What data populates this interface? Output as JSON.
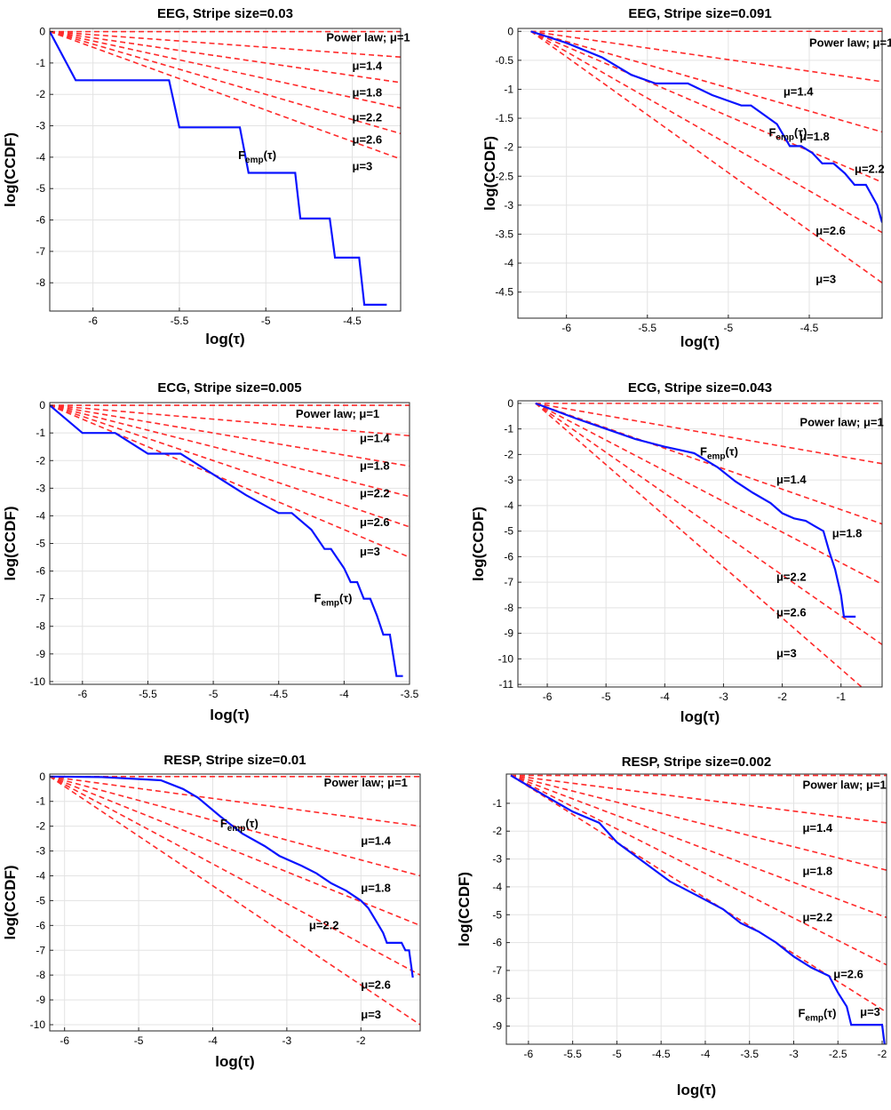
{
  "colors": {
    "empirical": "#0a14ff",
    "reference": "#ff2a2a",
    "grid": "#e3e3e3"
  },
  "chart_data": [
    {
      "type": "line",
      "title": "EEG, Stripe size=0.03",
      "xlabel": "log(τ)",
      "ylabel": "log(CCDF)",
      "xlim": [
        -6.25,
        -4.22
      ],
      "ylim": [
        -8.9,
        0.1
      ],
      "xticks": [
        -6,
        -5.5,
        -5,
        -4.5
      ],
      "xtick_labels": [
        "-6",
        "-5.5",
        "-5",
        "-4.5"
      ],
      "yticks": [
        0,
        -1,
        -2,
        -3,
        -4,
        -5,
        -6,
        -7,
        -8
      ],
      "ytick_labels": [
        "0",
        "-1",
        "-2",
        "-3",
        "-4",
        "-5",
        "-6",
        "-7",
        "-8"
      ],
      "reference_x0": -6.25,
      "reference_lines": [
        {
          "mu": 1,
          "label_prefix": "Power law; ",
          "label": "μ=1",
          "label_pos": [
            -4.65,
            -0.2
          ]
        },
        {
          "mu": 1.4,
          "label": "μ=1.4",
          "label_pos": [
            -4.5,
            -1.1
          ]
        },
        {
          "mu": 1.8,
          "label": "μ=1.8",
          "label_pos": [
            -4.5,
            -1.95
          ]
        },
        {
          "mu": 2.2,
          "label": "μ=2.2",
          "label_pos": [
            -4.5,
            -2.75
          ]
        },
        {
          "mu": 2.6,
          "label": "μ=2.6",
          "label_pos": [
            -4.5,
            -3.45
          ]
        },
        {
          "mu": 3,
          "label": "μ=3",
          "label_pos": [
            -4.5,
            -4.3
          ]
        }
      ],
      "empirical": {
        "label": "F",
        "label_sub": "emp",
        "label_suffix": "(τ)",
        "label_pos": [
          -5.16,
          -3.95
        ],
        "x": [
          -6.25,
          -6.1,
          -5.56,
          -5.5,
          -5.15,
          -5.1,
          -4.83,
          -4.8,
          -4.63,
          -4.6,
          -4.46,
          -4.43,
          -4.3
        ],
        "y": [
          0,
          -1.55,
          -1.55,
          -3.05,
          -3.05,
          -4.5,
          -4.5,
          -5.95,
          -5.95,
          -7.2,
          -7.2,
          -8.7,
          -8.7
        ]
      }
    },
    {
      "type": "line",
      "title": "EEG, Stripe size=0.091",
      "xlabel": "log(τ)",
      "ylabel": "log(CCDF)",
      "xlim": [
        -6.3,
        -4.05
      ],
      "ylim": [
        -4.95,
        0.05
      ],
      "xticks": [
        -6,
        -5.5,
        -5,
        -4.5
      ],
      "xtick_labels": [
        "-6",
        "-5.5",
        "-5",
        "-4.5"
      ],
      "yticks": [
        0,
        -0.5,
        -1,
        -1.5,
        -2,
        -2.5,
        -3,
        -3.5,
        -4,
        -4.5
      ],
      "ytick_labels": [
        "0",
        "-0.5",
        "-1",
        "-1.5",
        "-2",
        "-2.5",
        "-3",
        "-3.5",
        "-4",
        "-4.5"
      ],
      "reference_x0": -6.22,
      "reference_lines": [
        {
          "mu": 1,
          "label_prefix": "Power law; ",
          "label": "μ=1",
          "label_pos": [
            -4.5,
            -0.2
          ]
        },
        {
          "mu": 1.4,
          "label": "μ=1.4",
          "label_pos": [
            -4.66,
            -1.05
          ]
        },
        {
          "mu": 1.8,
          "label": "μ=1.8",
          "label_pos": [
            -4.56,
            -1.82
          ]
        },
        {
          "mu": 2.2,
          "label": "μ=2.2",
          "label_pos": [
            -4.22,
            -2.38
          ]
        },
        {
          "mu": 2.6,
          "label": "μ=2.6",
          "label_pos": [
            -4.46,
            -3.45
          ]
        },
        {
          "mu": 3,
          "label": "μ=3",
          "label_pos": [
            -4.46,
            -4.28
          ]
        }
      ],
      "empirical": {
        "label": "F",
        "label_sub": "emp",
        "label_suffix": "(τ)",
        "label_pos": [
          -4.75,
          -1.75
        ],
        "x": [
          -6.22,
          -6.0,
          -5.78,
          -5.6,
          -5.45,
          -5.25,
          -5.1,
          -4.92,
          -4.86,
          -4.7,
          -4.62,
          -4.55,
          -4.48,
          -4.42,
          -4.35,
          -4.28,
          -4.22,
          -4.15,
          -4.08,
          -4.05
        ],
        "y": [
          0,
          -0.2,
          -0.45,
          -0.75,
          -0.9,
          -0.9,
          -1.1,
          -1.28,
          -1.28,
          -1.6,
          -1.98,
          -1.98,
          -2.1,
          -2.28,
          -2.28,
          -2.45,
          -2.65,
          -2.65,
          -3.0,
          -3.3
        ]
      }
    },
    {
      "type": "line",
      "title": "ECG, Stripe size=0.005",
      "xlabel": "log(τ)",
      "ylabel": "log(CCDF)",
      "xlim": [
        -6.25,
        -3.5
      ],
      "ylim": [
        -10.1,
        0.1
      ],
      "xticks": [
        -6,
        -5.5,
        -5,
        -4.5,
        -4,
        -3.5
      ],
      "xtick_labels": [
        "-6",
        "-5.5",
        "-5",
        "-4.5",
        "-4",
        "-3.5"
      ],
      "yticks": [
        0,
        -1,
        -2,
        -3,
        -4,
        -5,
        -6,
        -7,
        -8,
        -9,
        -10
      ],
      "ytick_labels": [
        "0",
        "-1",
        "-2",
        "-3",
        "-4",
        "-5",
        "-6",
        "-7",
        "-8",
        "-9",
        "-10"
      ],
      "reference_x0": -6.25,
      "reference_lines": [
        {
          "mu": 1,
          "label_prefix": "Power law; ",
          "label": "μ=1",
          "label_pos": [
            -4.37,
            -0.32
          ]
        },
        {
          "mu": 1.4,
          "label": "μ=1.4",
          "label_pos": [
            -3.88,
            -1.2
          ]
        },
        {
          "mu": 1.8,
          "label": "μ=1.8",
          "label_pos": [
            -3.88,
            -2.2
          ]
        },
        {
          "mu": 2.2,
          "label": "μ=2.2",
          "label_pos": [
            -3.88,
            -3.2
          ]
        },
        {
          "mu": 2.6,
          "label": "μ=2.6",
          "label_pos": [
            -3.88,
            -4.25
          ]
        },
        {
          "mu": 3,
          "label": "μ=3",
          "label_pos": [
            -3.88,
            -5.3
          ]
        }
      ],
      "empirical": {
        "label": "F",
        "label_sub": "emp",
        "label_suffix": "(τ)",
        "label_pos": [
          -4.23,
          -7.0
        ],
        "x": [
          -6.25,
          -6.0,
          -5.75,
          -5.5,
          -5.25,
          -5.0,
          -4.75,
          -4.5,
          -4.4,
          -4.25,
          -4.15,
          -4.1,
          -4.0,
          -3.95,
          -3.9,
          -3.85,
          -3.8,
          -3.75,
          -3.7,
          -3.65,
          -3.6,
          -3.55
        ],
        "y": [
          0,
          -1.0,
          -1.0,
          -1.75,
          -1.75,
          -2.5,
          -3.25,
          -3.9,
          -3.9,
          -4.5,
          -5.2,
          -5.2,
          -5.9,
          -6.4,
          -6.4,
          -7.0,
          -7.0,
          -7.6,
          -8.3,
          -8.3,
          -9.8,
          -9.8
        ]
      }
    },
    {
      "type": "line",
      "title": "ECG, Stripe size=0.043",
      "xlabel": "log(τ)",
      "ylabel": "log(CCDF)",
      "xlim": [
        -6.5,
        -0.3
      ],
      "ylim": [
        -11.1,
        0.1
      ],
      "xticks": [
        -6,
        -5,
        -4,
        -3,
        -2,
        -1
      ],
      "xtick_labels": [
        "-6",
        "-5",
        "-4",
        "-3",
        "-2",
        "-1"
      ],
      "yticks": [
        0,
        -1,
        -2,
        -3,
        -4,
        -5,
        -6,
        -7,
        -8,
        -9,
        -10,
        -11
      ],
      "ytick_labels": [
        "0",
        "-1",
        "-2",
        "-3",
        "-4",
        "-5",
        "-6",
        "-7",
        "-8",
        "-9",
        "-10",
        "-11"
      ],
      "reference_x0": -6.2,
      "reference_lines": [
        {
          "mu": 1,
          "label_prefix": "Power law; ",
          "label": "μ=1",
          "label_pos": [
            -1.7,
            -0.75
          ]
        },
        {
          "mu": 1.4,
          "label": "μ=1.4",
          "label_pos": [
            -2.1,
            -3.0
          ]
        },
        {
          "mu": 1.8,
          "label": "μ=1.8",
          "label_pos": [
            -1.15,
            -5.1
          ]
        },
        {
          "mu": 2.2,
          "label": "μ=2.2",
          "label_pos": [
            -2.1,
            -6.8
          ]
        },
        {
          "mu": 2.6,
          "label": "μ=2.6",
          "label_pos": [
            -2.1,
            -8.2
          ]
        },
        {
          "mu": 3,
          "label": "μ=3",
          "label_pos": [
            -2.1,
            -9.8
          ]
        }
      ],
      "empirical": {
        "label": "F",
        "label_sub": "emp",
        "label_suffix": "(τ)",
        "label_pos": [
          -3.4,
          -1.9
        ],
        "x": [
          -6.2,
          -5.5,
          -5.0,
          -4.5,
          -4.0,
          -3.5,
          -3.1,
          -2.8,
          -2.5,
          -2.2,
          -2.0,
          -1.8,
          -1.6,
          -1.45,
          -1.3,
          -1.2,
          -1.1,
          -1.0,
          -0.95,
          -0.75
        ],
        "y": [
          0,
          -0.6,
          -1.0,
          -1.4,
          -1.7,
          -1.95,
          -2.5,
          -3.05,
          -3.5,
          -3.9,
          -4.3,
          -4.5,
          -4.6,
          -4.8,
          -5.0,
          -5.8,
          -6.5,
          -7.5,
          -8.35,
          -8.35
        ]
      }
    },
    {
      "type": "line",
      "title": "RESP, Stripe size=0.01",
      "xlabel": "log(τ)",
      "ylabel": "log(CCDF)",
      "xlim": [
        -6.2,
        -1.2
      ],
      "ylim": [
        -10.25,
        0.1
      ],
      "xticks": [
        -6,
        -5,
        -4,
        -3,
        -2
      ],
      "xtick_labels": [
        "-6",
        "-5",
        "-4",
        "-3",
        "-2"
      ],
      "yticks": [
        0,
        -1,
        -2,
        -3,
        -4,
        -5,
        -6,
        -7,
        -8,
        -9,
        -10
      ],
      "ytick_labels": [
        "0",
        "-1",
        "-2",
        "-3",
        "-4",
        "-5",
        "-6",
        "-7",
        "-8",
        "-9",
        "-10"
      ],
      "reference_x0": -6.2,
      "reference_lines": [
        {
          "mu": 1,
          "label_prefix": "Power law; ",
          "label": "μ=1",
          "label_pos": [
            -2.5,
            -0.25
          ]
        },
        {
          "mu": 1.4,
          "label": "μ=1.4",
          "label_pos": [
            -2.0,
            -2.6
          ]
        },
        {
          "mu": 1.8,
          "label": "μ=1.8",
          "label_pos": [
            -2.0,
            -4.5
          ]
        },
        {
          "mu": 2.2,
          "label": "μ=2.2",
          "label_pos": [
            -2.7,
            -6.0
          ]
        },
        {
          "mu": 2.6,
          "label": "μ=2.6",
          "label_pos": [
            -2.0,
            -8.4
          ]
        },
        {
          "mu": 3,
          "label": "μ=3",
          "label_pos": [
            -2.0,
            -9.6
          ]
        }
      ],
      "empirical": {
        "label": "F",
        "label_sub": "emp",
        "label_suffix": "(τ)",
        "label_pos": [
          -3.9,
          -1.9
        ],
        "x": [
          -6.2,
          -5.5,
          -5.0,
          -4.7,
          -4.4,
          -4.2,
          -3.9,
          -3.6,
          -3.3,
          -3.1,
          -2.8,
          -2.6,
          -2.4,
          -2.2,
          -2.0,
          -1.9,
          -1.8,
          -1.7,
          -1.65,
          -1.55,
          -1.45,
          -1.4,
          -1.35,
          -1.3
        ],
        "y": [
          0,
          -0.02,
          -0.1,
          -0.15,
          -0.5,
          -0.85,
          -1.6,
          -2.3,
          -2.8,
          -3.2,
          -3.6,
          -3.9,
          -4.3,
          -4.6,
          -5.0,
          -5.3,
          -5.8,
          -6.3,
          -6.7,
          -6.7,
          -6.7,
          -7.0,
          -7.0,
          -8.1
        ]
      }
    },
    {
      "type": "line",
      "title": "RESP, Stripe size=0.002",
      "xlabel": "log(τ)",
      "ylabel": "log(CCDF)",
      "xlim": [
        -6.25,
        -1.95
      ],
      "ylim": [
        -9.65,
        0.05
      ],
      "xticks": [
        -6,
        -5.5,
        -5,
        -4.5,
        -4,
        -3.5,
        -3,
        -2.5,
        -2
      ],
      "xtick_labels": [
        "-6",
        "-5.5",
        "-5",
        "-4.5",
        "-4",
        "-3.5",
        "-3",
        "-2.5",
        "-2"
      ],
      "yticks": [
        -1,
        -2,
        -3,
        -4,
        -5,
        -6,
        -7,
        -8,
        -9
      ],
      "ytick_labels": [
        "-1",
        "-2",
        "-3",
        "-4",
        "-5",
        "-6",
        "-7",
        "-8",
        "-9"
      ],
      "reference_x0": -6.2,
      "reference_lines": [
        {
          "mu": 1,
          "label_prefix": "Power law; ",
          "label": "μ=1",
          "label_pos": [
            -2.9,
            -0.35
          ]
        },
        {
          "mu": 1.4,
          "label": "μ=1.4",
          "label_pos": [
            -2.9,
            -1.9
          ]
        },
        {
          "mu": 1.8,
          "label": "μ=1.8",
          "label_pos": [
            -2.9,
            -3.45
          ]
        },
        {
          "mu": 2.2,
          "label": "μ=2.2",
          "label_pos": [
            -2.9,
            -5.1
          ]
        },
        {
          "mu": 2.6,
          "label": "μ=2.6",
          "label_pos": [
            -2.55,
            -7.15
          ]
        },
        {
          "mu": 3,
          "label": "μ=3",
          "label_pos": [
            -2.25,
            -8.5
          ]
        }
      ],
      "empirical": {
        "label": "F",
        "label_sub": "emp",
        "label_suffix": "(τ)",
        "label_pos": [
          -2.95,
          -8.55
        ],
        "x": [
          -6.2,
          -5.8,
          -5.5,
          -5.2,
          -5.0,
          -4.7,
          -4.4,
          -4.1,
          -3.8,
          -3.6,
          -3.4,
          -3.2,
          -3.0,
          -2.8,
          -2.6,
          -2.5,
          -2.4,
          -2.35,
          -2.05,
          -2.0,
          -1.97
        ],
        "y": [
          0,
          -0.75,
          -1.3,
          -1.7,
          -2.4,
          -3.1,
          -3.8,
          -4.3,
          -4.8,
          -5.3,
          -5.6,
          -6.0,
          -6.5,
          -6.9,
          -7.2,
          -7.8,
          -8.3,
          -8.95,
          -8.95,
          -8.95,
          -9.7
        ]
      }
    }
  ]
}
